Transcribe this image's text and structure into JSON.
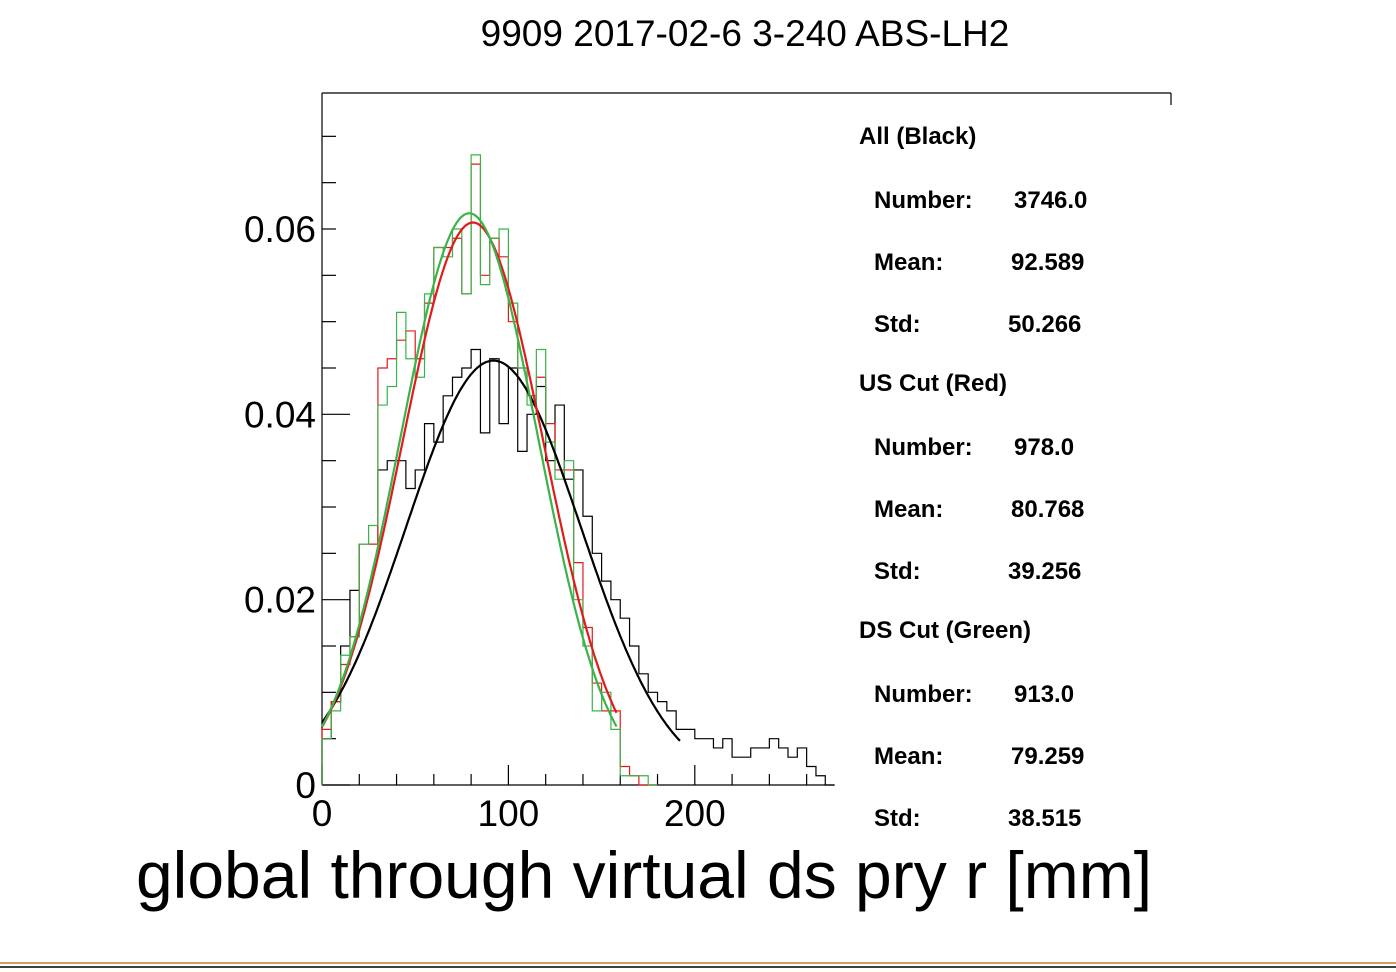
{
  "chart_data": {
    "type": "histogram",
    "title": "9909 2017-02-6 3-240 ABS-LH2",
    "xlabel": "global through virtual ds pry r [mm]",
    "ylabel": "",
    "xlim": [
      0,
      275
    ],
    "ylim": [
      0,
      0.074
    ],
    "bin_width": 5,
    "x_ticks": [
      0,
      100,
      200
    ],
    "y_ticks": [
      0,
      0.02,
      0.04,
      0.06
    ],
    "x_tick_labels": [
      "0",
      "100",
      "200"
    ],
    "y_tick_labels": [
      "0",
      "0.02",
      "0.04",
      "0.06"
    ],
    "grid": false,
    "legend_position": "right",
    "series": [
      {
        "color": "#000000",
        "bin_starts": [
          0,
          5,
          10,
          15,
          20,
          25,
          30,
          35,
          40,
          45,
          50,
          55,
          60,
          65,
          70,
          75,
          80,
          85,
          90,
          95,
          100,
          105,
          110,
          115,
          120,
          125,
          130,
          135,
          140,
          145,
          150,
          155,
          160,
          165,
          170,
          175,
          180,
          185,
          190,
          195,
          200,
          205,
          210,
          215,
          220,
          225,
          230,
          235,
          240,
          245,
          250,
          255,
          260,
          265,
          270
        ],
        "values": [
          0.005,
          0.009,
          0.015,
          0.021,
          0.026,
          0.026,
          0.034,
          0.035,
          0.035,
          0.032,
          0.034,
          0.039,
          0.037,
          0.042,
          0.044,
          0.045,
          0.047,
          0.038,
          0.046,
          0.039,
          0.045,
          0.036,
          0.04,
          0.043,
          0.035,
          0.041,
          0.033,
          0.034,
          0.029,
          0.025,
          0.022,
          0.02,
          0.018,
          0.015,
          0.012,
          0.01,
          0.009,
          0.008,
          0.006,
          0.006,
          0.005,
          0.005,
          0.004,
          0.005,
          0.003,
          0.003,
          0.004,
          0.004,
          0.005,
          0.004,
          0.003,
          0.004,
          0.002,
          0.001,
          0.0
        ],
        "fit": {
          "type": "gaussian",
          "amplitude": 0.0458,
          "mean": 92,
          "sigma": 47,
          "range": [
            0,
            192
          ]
        }
      },
      {
        "color": "#e01b1b",
        "bin_starts": [
          0,
          5,
          10,
          15,
          20,
          25,
          30,
          35,
          40,
          45,
          50,
          55,
          60,
          65,
          70,
          75,
          80,
          85,
          90,
          95,
          100,
          105,
          110,
          115,
          120,
          125,
          130,
          135,
          140,
          145,
          150,
          155,
          160,
          165,
          170,
          175
        ],
        "values": [
          0.006,
          0.009,
          0.013,
          0.016,
          0.026,
          0.026,
          0.045,
          0.046,
          0.048,
          0.049,
          0.046,
          0.052,
          0.058,
          0.058,
          0.059,
          0.053,
          0.067,
          0.055,
          0.059,
          0.057,
          0.05,
          0.045,
          0.042,
          0.044,
          0.039,
          0.034,
          0.034,
          0.024,
          0.017,
          0.011,
          0.008,
          0.008,
          0.002,
          0.001,
          0.0,
          0.0
        ],
        "fit": {
          "type": "gaussian",
          "amplitude": 0.0607,
          "mean": 81,
          "sigma": 38,
          "range": [
            0,
            158
          ]
        }
      },
      {
        "color": "#3cb34a",
        "bin_starts": [
          0,
          5,
          10,
          15,
          20,
          25,
          30,
          35,
          40,
          45,
          50,
          55,
          60,
          65,
          70,
          75,
          80,
          85,
          90,
          95,
          100,
          105,
          110,
          115,
          120,
          125,
          130,
          135,
          140,
          145,
          150,
          155,
          160,
          165,
          170,
          175
        ],
        "values": [
          0.005,
          0.008,
          0.014,
          0.016,
          0.026,
          0.028,
          0.041,
          0.043,
          0.051,
          0.046,
          0.044,
          0.053,
          0.058,
          0.057,
          0.06,
          0.053,
          0.068,
          0.054,
          0.059,
          0.06,
          0.052,
          0.045,
          0.041,
          0.047,
          0.037,
          0.033,
          0.035,
          0.02,
          0.015,
          0.008,
          0.01,
          0.006,
          0.001,
          0.001,
          0.001,
          0.0
        ],
        "fit": {
          "type": "gaussian",
          "amplitude": 0.0617,
          "mean": 79,
          "sigma": 37,
          "range": [
            0,
            158
          ]
        }
      }
    ],
    "stats": [
      {
        "header": "All (Black)",
        "rows": [
          {
            "label": "Number:",
            "value": "3746.0"
          },
          {
            "label": "Mean:",
            "value": "92.589"
          },
          {
            "label": "Std:",
            "value": "50.266"
          }
        ]
      },
      {
        "header": "US Cut (Red)",
        "rows": [
          {
            "label": "Number:",
            "value": "978.0"
          },
          {
            "label": "Mean:",
            "value": "80.768"
          },
          {
            "label": "Std:",
            "value": "39.256"
          }
        ]
      },
      {
        "header": "DS Cut (Green)",
        "rows": [
          {
            "label": "Number:",
            "value": "913.0"
          },
          {
            "label": "Mean:",
            "value": "79.259"
          },
          {
            "label": "Std:",
            "value": "38.515"
          }
        ]
      }
    ],
    "footer_rule_color": "#c77a2e"
  }
}
